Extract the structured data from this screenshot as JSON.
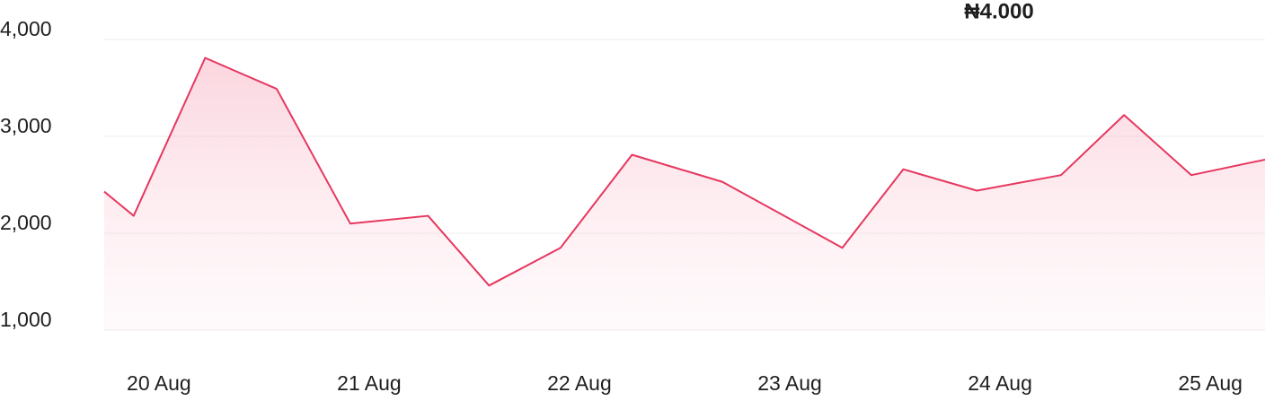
{
  "chart_data": {
    "type": "line",
    "annotation": "₦4.000",
    "x": [
      19.74,
      19.88,
      20.22,
      20.56,
      20.91,
      21.28,
      21.57,
      21.91,
      22.25,
      22.68,
      23.25,
      23.54,
      23.89,
      24.29,
      24.59,
      24.91,
      25.26
    ],
    "series": [
      {
        "color": "#e6375f",
        "values": [
          2430,
          2180,
          3810,
          3490,
          2100,
          2180,
          1460,
          1850,
          2810,
          2530,
          1850,
          2660,
          2440,
          2600,
          3220,
          2600,
          2760
        ]
      }
    ],
    "xlim": [
      19.74,
      25.26
    ],
    "xticks": [
      {
        "value": 20,
        "label": "20 Aug"
      },
      {
        "value": 21,
        "label": "21 Aug"
      },
      {
        "value": 22,
        "label": "22 Aug"
      },
      {
        "value": 23,
        "label": "23 Aug"
      },
      {
        "value": 24,
        "label": "24 Aug"
      },
      {
        "value": 25,
        "label": "25 Aug"
      }
    ],
    "ylim": [
      1000,
      4000
    ],
    "yticks": [
      {
        "value": 1000,
        "label": "1,000"
      },
      {
        "value": 2000,
        "label": "2,000"
      },
      {
        "value": 3000,
        "label": "3,000"
      },
      {
        "value": 4000,
        "label": "4,000"
      }
    ],
    "grid": true
  }
}
